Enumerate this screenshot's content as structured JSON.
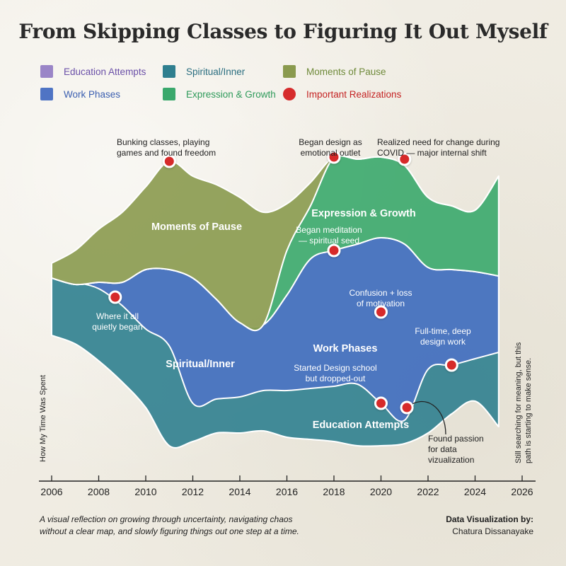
{
  "title": "From Skipping Classes to Figuring It Out Myself",
  "legend": [
    {
      "label": "Education Attempts",
      "color": "#9a85c7",
      "text_color": "#6a4fa8",
      "marker": "square"
    },
    {
      "label": "Spiritual/Inner",
      "color": "#2f7f8f",
      "text_color": "#2a6e80",
      "marker": "square"
    },
    {
      "label": "Moments of Pause",
      "color": "#8a9a4e",
      "text_color": "#6f8a3a",
      "marker": "square"
    },
    {
      "label": "Work Phases",
      "color": "#4f74c4",
      "text_color": "#3b5fb0",
      "marker": "square"
    },
    {
      "label": "Expression & Growth",
      "color": "#3aa86c",
      "text_color": "#2e9a5a",
      "marker": "square"
    },
    {
      "label": "Important Realizations",
      "color": "#d62c2c",
      "text_color": "#c42222",
      "marker": "circle"
    }
  ],
  "chart_data": {
    "type": "area",
    "variant": "streamgraph",
    "xlabel": "",
    "ylabel": "How My Time Was Spent",
    "xlim": [
      2006,
      2026
    ],
    "x_ticks": [
      2006,
      2008,
      2010,
      2012,
      2014,
      2016,
      2018,
      2020,
      2022,
      2024,
      2026
    ],
    "x": [
      2006,
      2007,
      2008,
      2009,
      2010,
      2011,
      2012,
      2013,
      2014,
      2015,
      2016,
      2017,
      2018,
      2019,
      2020,
      2021,
      2022,
      2023,
      2024,
      2025
    ],
    "series": [
      {
        "name": "Education Attempts",
        "color": "#9a85c7",
        "label": "Education Attempts"
      },
      {
        "name": "Spiritual/Inner",
        "color": "#2f7f8f",
        "label": "Spiritual/Inner"
      },
      {
        "name": "Work Phases",
        "color": "#4f74c4",
        "label": "Work Phases"
      },
      {
        "name": "Expression & Growth",
        "color": "#3aa86c",
        "label": "Expression & Growth"
      },
      {
        "name": "Moments of Pause",
        "color": "#8a9a4e",
        "label": "Moments of Pause"
      }
    ],
    "boundaries": [
      [
        6.2,
        5.8,
        5.0,
        4.0,
        2.8,
        1.0,
        1.2,
        1.6,
        1.6,
        1.7,
        1.4,
        1.3,
        1.2,
        1.0,
        1.0,
        1.1,
        1.6,
        2.5,
        3.1,
        1.9
      ],
      [
        6.2,
        5.8,
        5.0,
        4.0,
        2.8,
        1.0,
        1.2,
        1.6,
        1.6,
        1.7,
        1.4,
        1.3,
        1.2,
        1.0,
        1.0,
        1.1,
        1.6,
        2.5,
        3.1,
        1.9
      ],
      [
        8.9,
        8.7,
        8.4,
        7.6,
        6.5,
        5.7,
        3.0,
        3.2,
        3.3,
        3.6,
        3.6,
        3.7,
        3.8,
        3.9,
        3.0,
        2.2,
        4.6,
        4.8,
        5.1,
        5.4
      ],
      [
        8.9,
        8.7,
        8.4,
        7.6,
        6.5,
        5.7,
        3.0,
        3.2,
        3.3,
        3.6,
        3.6,
        3.7,
        3.8,
        3.9,
        3.0,
        2.2,
        4.6,
        4.8,
        5.1,
        5.4
      ],
      [
        8.9,
        8.7,
        8.4,
        7.6,
        6.5,
        5.7,
        3.0,
        3.2,
        3.3,
        3.6,
        3.6,
        6.7,
        7.2,
        7.3,
        7.3,
        6.6,
        4.6,
        4.8,
        5.1,
        5.4
      ],
      [
        8.9,
        8.6,
        8.7,
        8.7,
        9.3,
        9.3,
        8.9,
        7.9,
        6.8,
        6.7,
        8.1,
        9.8,
        10.2,
        10.5,
        10.8,
        10.5,
        9.4,
        9.3,
        9.2,
        9.0
      ],
      [
        8.9,
        8.6,
        8.7,
        8.7,
        9.3,
        9.3,
        8.9,
        7.9,
        6.8,
        6.7,
        10.2,
        12.3,
        14.6,
        14.5,
        14.6,
        14.2,
        12.7,
        12.3,
        12.1,
        13.7
      ],
      [
        9.6,
        10.2,
        11.2,
        12.0,
        13.2,
        14.4,
        13.7,
        13.3,
        12.7,
        12.0,
        12.4,
        13.4,
        14.6,
        14.5,
        14.6,
        14.2,
        12.7,
        12.3,
        12.1,
        13.7
      ]
    ],
    "layer_bounds": {
      "Education Attempts": [
        0,
        1
      ],
      "Spiritual/Inner": [
        1,
        5
      ],
      "Work Phases": [
        3,
        5
      ],
      "Expression & Growth": [
        5,
        6
      ],
      "Moments of Pause": [
        6,
        7
      ]
    },
    "annotations": [
      {
        "x": 2011,
        "y": 14.4,
        "text": "Bunking classes, playing games and found freedom",
        "lines": [
          "Bunking classes, playing",
          "games and found freedom"
        ]
      },
      {
        "x": 2018,
        "y": 14.6,
        "text": "Began design as emotional outlet",
        "lines": [
          "Began design as",
          "emotional outlet"
        ]
      },
      {
        "x": 2021,
        "y": 14.5,
        "text": "Realized need for change during COVID — major internal shift",
        "lines": [
          "Realized need for change during",
          "COVID — major internal shift"
        ]
      },
      {
        "x": 2018,
        "y": 10.2,
        "text": "Began meditation — spiritual seed",
        "lines": [
          "Began meditation",
          "— spiritual seed"
        ]
      },
      {
        "x": 2008.7,
        "y": 8.0,
        "text": "Where it all quietly began",
        "lines": [
          "Where it all",
          "quietly began"
        ]
      },
      {
        "x": 2020,
        "y": 7.3,
        "text": "Confusion + loss of motivation",
        "lines": [
          "Confusion + loss",
          "of motivation"
        ]
      },
      {
        "x": 2023,
        "y": 4.8,
        "text": "Full-time, deep design work",
        "lines": [
          "Full-time, deep",
          "design work"
        ]
      },
      {
        "x": 2020,
        "y": 3.0,
        "text": "Started Design school but dropped-out",
        "lines": [
          "Started Design school",
          "but dropped-out"
        ]
      },
      {
        "x": 2021.1,
        "y": 2.8,
        "text": "Found passion for data vizualization",
        "lines": [
          "Found passion",
          "for data",
          "vizualization"
        ]
      }
    ],
    "right_note": "Still searching for meaning, but this path is starting to make sense.",
    "right_note_lines": [
      "Still searching for meaning, but this",
      "path is starting to make sense."
    ]
  },
  "footer": {
    "description": "A visual reflection on growing through uncertainty, navigating chaos without a clear map, and slowly figuring things out one step at a time.",
    "description_lines": [
      "A visual reflection on growing through uncertainty, navigating chaos",
      "without a clear map, and slowly figuring things out one step at a time."
    ],
    "credit_title": "Data Visualization by:",
    "credit_name": "Chatura Dissanayake"
  }
}
